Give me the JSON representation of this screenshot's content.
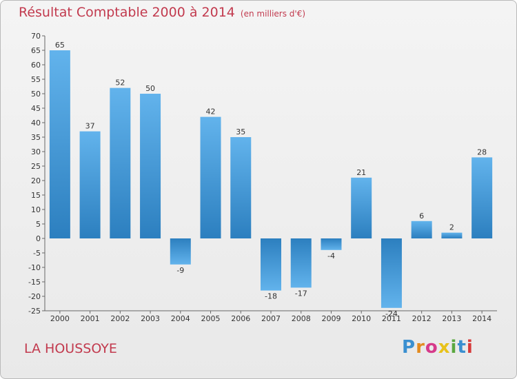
{
  "title": "Résultat Comptable 2000 à 2014",
  "subtitle": "(en milliers d'€)",
  "commune": "LA HOUSSOYE",
  "logo": {
    "text": "Proxiti",
    "colors": [
      "#3a8fd0",
      "#e38b1f",
      "#d63a8a",
      "#e8c21a",
      "#5aa840",
      "#3a8fd0",
      "#d63a3a"
    ]
  },
  "colors": {
    "bar_top": "#62b3ec",
    "bar_bottom": "#2c7fbf",
    "title": "#c23a4e"
  },
  "chart_data": {
    "type": "bar",
    "title": "Résultat Comptable 2000 à 2014 (en milliers d'€)",
    "xlabel": "",
    "ylabel": "",
    "categories": [
      "2000",
      "2001",
      "2002",
      "2003",
      "2004",
      "2005",
      "2006",
      "2007",
      "2008",
      "2009",
      "2010",
      "2011",
      "2012",
      "2013",
      "2014"
    ],
    "values": [
      65,
      37,
      52,
      50,
      -9,
      42,
      35,
      -18,
      -17,
      -4,
      21,
      -24,
      6,
      2,
      28
    ],
    "ylim": [
      -25,
      70
    ],
    "yticks": [
      -25,
      -20,
      -15,
      -10,
      -5,
      0,
      5,
      10,
      15,
      20,
      25,
      30,
      35,
      40,
      45,
      50,
      55,
      60,
      65,
      70
    ],
    "grid": false,
    "legend": "none"
  }
}
